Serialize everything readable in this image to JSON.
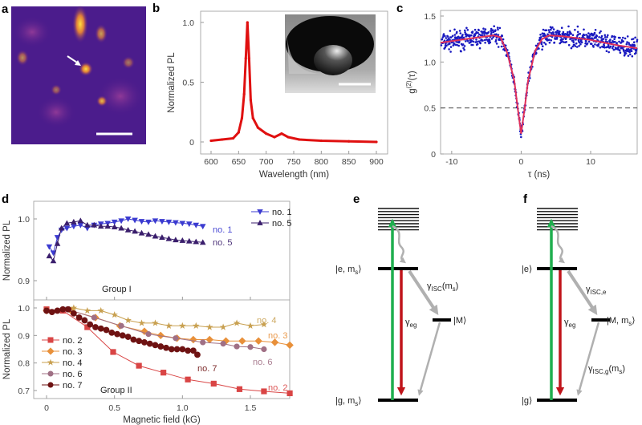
{
  "panels": {
    "a": {
      "letter": "a"
    },
    "b": {
      "letter": "b"
    },
    "c": {
      "letter": "c"
    },
    "d": {
      "letter": "d"
    },
    "e": {
      "letter": "e"
    },
    "f": {
      "letter": "f"
    }
  },
  "chart_data": [
    {
      "panel": "b",
      "type": "line",
      "xlabel": "Wavelength (nm)",
      "ylabel": "Normalized PL",
      "xlim": [
        585,
        910
      ],
      "ylim": [
        -0.08,
        1.08
      ],
      "xticks": [
        "600",
        "650",
        "700",
        "750",
        "800",
        "850",
        "900"
      ],
      "yticks": [
        "0",
        "0.5",
        "1.0"
      ],
      "color": "#e01010",
      "x": [
        600,
        620,
        640,
        650,
        656,
        660,
        663,
        666,
        669,
        672,
        676,
        685,
        700,
        715,
        728,
        740,
        760,
        800,
        850,
        900
      ],
      "y": [
        0.01,
        0.02,
        0.03,
        0.08,
        0.2,
        0.4,
        0.7,
        1.0,
        0.7,
        0.35,
        0.2,
        0.12,
        0.07,
        0.04,
        0.07,
        0.04,
        0.02,
        0.01,
        0.005,
        0.0
      ],
      "inset": "SEM image of micropillar in well"
    },
    {
      "panel": "c",
      "type": "scatter",
      "xlabel": "τ (ns)",
      "ylabel": "g(2)(τ)",
      "ylabel_main": "g",
      "ylabel_sup": "(2)",
      "ylabel_tail": "(τ)",
      "xlim": [
        -11.6,
        16.7
      ],
      "ylim": [
        0,
        1.55
      ],
      "xticks": [
        "-10",
        "0",
        "10"
      ],
      "yticks": [
        "0",
        "0.5",
        "1.0",
        "1.5"
      ],
      "reference_line": 0.5,
      "point_color": "#1a1ac0",
      "fit_color": "#e0305a",
      "fit": {
        "x": [
          -11.6,
          -8,
          -4,
          -3,
          -2,
          -1,
          -0.5,
          0,
          0.5,
          1,
          2,
          3,
          4,
          6,
          10,
          14,
          16.7
        ],
        "y": [
          1.21,
          1.25,
          1.29,
          1.27,
          1.1,
          0.8,
          0.5,
          0.22,
          0.5,
          0.8,
          1.12,
          1.25,
          1.29,
          1.28,
          1.24,
          1.18,
          1.15
        ]
      }
    },
    {
      "panel": "d",
      "type": "line",
      "xlabel": "Magnetic field (kG)",
      "ylabel": "Normalized PL",
      "xlim": [
        -0.07,
        1.8
      ],
      "xticks": [
        "0",
        "0.5",
        "1.0",
        "1.5"
      ],
      "subplots": [
        {
          "title": "Group I",
          "ylim": [
            0.873,
            1.028
          ],
          "yticks": [
            "0.9",
            "1.0"
          ],
          "legend": "top-right",
          "series": [
            {
              "name": "no. 1",
              "marker": "triangle-down",
              "color": "#3b3bd0",
              "x": [
                0.02,
                0.05,
                0.08,
                0.11,
                0.15,
                0.2,
                0.25,
                0.3,
                0.35,
                0.4,
                0.45,
                0.5,
                0.55,
                0.6,
                0.65,
                0.7,
                0.75,
                0.8,
                0.85,
                0.9,
                0.95,
                1.0,
                1.05,
                1.1,
                1.15
              ],
              "y": [
                0.955,
                0.945,
                0.97,
                0.982,
                0.985,
                0.988,
                0.99,
                0.985,
                0.99,
                0.992,
                0.993,
                0.995,
                0.997,
                1.0,
                0.998,
                0.996,
                0.995,
                0.997,
                0.996,
                0.995,
                0.994,
                0.993,
                0.992,
                0.99,
                0.988
              ]
            },
            {
              "name": "no. 5",
              "marker": "triangle-up",
              "color": "#3a1e6c",
              "x": [
                0.02,
                0.05,
                0.08,
                0.11,
                0.15,
                0.2,
                0.25,
                0.3,
                0.35,
                0.4,
                0.45,
                0.5,
                0.55,
                0.6,
                0.65,
                0.7,
                0.75,
                0.8,
                0.85,
                0.9,
                0.95,
                1.0,
                1.05,
                1.1,
                1.15
              ],
              "y": [
                0.94,
                0.932,
                0.96,
                0.985,
                0.993,
                0.995,
                0.997,
                0.99,
                0.99,
                0.988,
                0.988,
                0.987,
                0.985,
                0.982,
                0.98,
                0.977,
                0.975,
                0.972,
                0.97,
                0.968,
                0.966,
                0.965,
                0.964,
                0.963,
                0.962
              ]
            }
          ]
        },
        {
          "title": "Group II",
          "ylim": [
            0.675,
            1.03
          ],
          "yticks": [
            "0.7",
            "0.8",
            "0.9",
            "1.0"
          ],
          "legend": "bottom-left",
          "series": [
            {
              "name": "no. 2",
              "marker": "square",
              "color": "#d94545",
              "x": [
                0,
                0.12,
                0.3,
                0.49,
                0.68,
                0.86,
                1.04,
                1.23,
                1.42,
                1.6,
                1.79
              ],
              "y": [
                0.995,
                0.99,
                0.93,
                0.84,
                0.79,
                0.765,
                0.74,
                0.725,
                0.705,
                0.697,
                0.69
              ]
            },
            {
              "name": "no. 3",
              "marker": "diamond",
              "color": "#e8903a",
              "x": [
                0,
                0.18,
                0.36,
                0.54,
                0.72,
                0.84,
                0.96,
                1.08,
                1.2,
                1.32,
                1.44,
                1.56,
                1.68,
                1.79
              ],
              "y": [
                0.99,
                0.99,
                0.965,
                0.935,
                0.915,
                0.9,
                0.89,
                0.885,
                0.885,
                0.88,
                0.88,
                0.88,
                0.875,
                0.865
              ]
            },
            {
              "name": "no. 4",
              "marker": "star",
              "color": "#c8a050",
              "x": [
                0.2,
                0.3,
                0.4,
                0.5,
                0.6,
                0.7,
                0.8,
                0.9,
                1.0,
                1.1,
                1.2,
                1.3,
                1.4,
                1.5,
                1.6
              ],
              "y": [
                1.0,
                0.99,
                0.99,
                0.975,
                0.955,
                0.945,
                0.945,
                0.935,
                0.935,
                0.935,
                0.93,
                0.93,
                0.945,
                0.935,
                0.94
              ]
            },
            {
              "name": "no. 6",
              "marker": "circle",
              "color": "#a07085",
              "x": [
                0,
                0.15,
                0.35,
                0.55,
                0.75,
                0.95,
                1.15,
                1.3,
                1.4,
                1.5,
                1.6
              ],
              "y": [
                0.99,
                0.995,
                0.965,
                0.935,
                0.905,
                0.89,
                0.875,
                0.87,
                0.86,
                0.858,
                0.85
              ]
            },
            {
              "name": "no. 7",
              "marker": "circle",
              "color": "#6e1212",
              "x": [
                0,
                0.04,
                0.08,
                0.12,
                0.16,
                0.2,
                0.24,
                0.28,
                0.32,
                0.36,
                0.4,
                0.44,
                0.48,
                0.52,
                0.56,
                0.6,
                0.64,
                0.68,
                0.72,
                0.76,
                0.8,
                0.84,
                0.88,
                0.92,
                0.96,
                1.0,
                1.04,
                1.08,
                1.11
              ],
              "y": [
                0.99,
                0.985,
                0.99,
                0.995,
                0.995,
                0.98,
                0.965,
                0.955,
                0.94,
                0.93,
                0.925,
                0.92,
                0.91,
                0.905,
                0.9,
                0.895,
                0.885,
                0.88,
                0.875,
                0.87,
                0.865,
                0.86,
                0.855,
                0.85,
                0.85,
                0.85,
                0.845,
                0.845,
                0.83
              ]
            }
          ]
        }
      ]
    }
  ],
  "diagram_e": {
    "excited": "|e, m",
    "excited_sub": "s",
    "ground": "|g, m",
    "ground_sub": "s",
    "meta": "|M⟩",
    "gamma_isc": "γ",
    "gamma_isc_sub": "ISC",
    "gamma_isc_tail": "(m",
    "gamma_isc_tail_sub": "s",
    "gamma_eg": "γ",
    "gamma_eg_sub": "eg"
  },
  "diagram_f": {
    "excited": "|e⟩",
    "ground": "|g⟩",
    "meta": "|M, m",
    "meta_sub": "s",
    "gamma_isc_e": "γ",
    "gamma_isc_e_sub": "ISC,e",
    "gamma_isc_g": "γ",
    "gamma_isc_g_sub": "ISC,g",
    "gamma_isc_g_tail": "(m",
    "gamma_isc_g_tail_sub": "s",
    "gamma_eg": "γ",
    "gamma_eg_sub": "eg"
  },
  "colors": {
    "pump": "#1fae4e",
    "emission": "#c0141a",
    "nonradiative": "#b0b0b0"
  }
}
